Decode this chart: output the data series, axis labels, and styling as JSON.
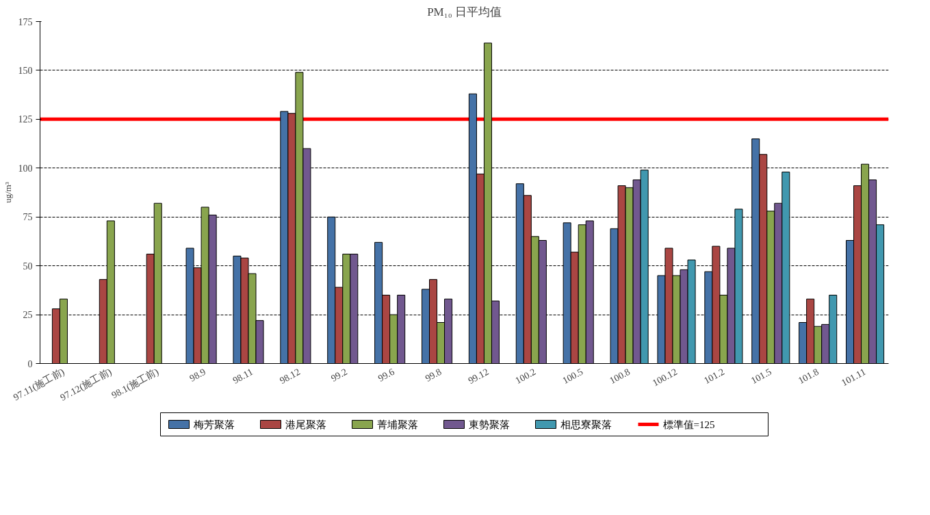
{
  "chart_data": {
    "type": "bar",
    "title": "PM₁₀ 日平均值",
    "ylabel": "ug/m³",
    "categories": [
      "97.11(施工前)",
      "97.12(施工前)",
      "98.1(施工前)",
      "98.9",
      "98.11",
      "98.12",
      "99.2",
      "99.6",
      "99.8",
      "99.12",
      "100.2",
      "100.5",
      "100.8",
      "100.12",
      "101.2",
      "101.5",
      "101.8",
      "101.11"
    ],
    "series": [
      {
        "name": "梅芳聚落",
        "color": "#4572a7",
        "values": [
          null,
          null,
          null,
          59,
          55,
          129,
          75,
          62,
          38,
          138,
          92,
          72,
          69,
          45,
          47,
          115,
          21,
          63
        ]
      },
      {
        "name": "港尾聚落",
        "color": "#aa4643",
        "values": [
          28,
          43,
          56,
          49,
          54,
          128,
          39,
          35,
          43,
          97,
          86,
          57,
          91,
          59,
          60,
          107,
          33,
          91
        ]
      },
      {
        "name": "菁埔聚落",
        "color": "#89a54e",
        "values": [
          33,
          73,
          82,
          80,
          46,
          149,
          56,
          25,
          21,
          164,
          65,
          71,
          90,
          45,
          35,
          78,
          19,
          102
        ]
      },
      {
        "name": "東勢聚落",
        "color": "#71588f",
        "values": [
          null,
          null,
          null,
          76,
          22,
          110,
          56,
          35,
          33,
          32,
          63,
          73,
          94,
          48,
          59,
          82,
          20,
          94
        ]
      },
      {
        "name": "相思寮聚落",
        "color": "#4198af",
        "values": [
          null,
          null,
          null,
          null,
          null,
          null,
          null,
          null,
          null,
          null,
          null,
          null,
          99,
          53,
          79,
          98,
          35,
          71
        ]
      }
    ],
    "ylim": [
      0,
      175
    ],
    "yticks": [
      0,
      25,
      50,
      75,
      100,
      125,
      150,
      175
    ],
    "grid": "y",
    "legend": "bottom",
    "ref_lines": [
      {
        "axis": "y",
        "value": 125,
        "label": "標準值=125",
        "color": "#ff0000"
      }
    ]
  }
}
